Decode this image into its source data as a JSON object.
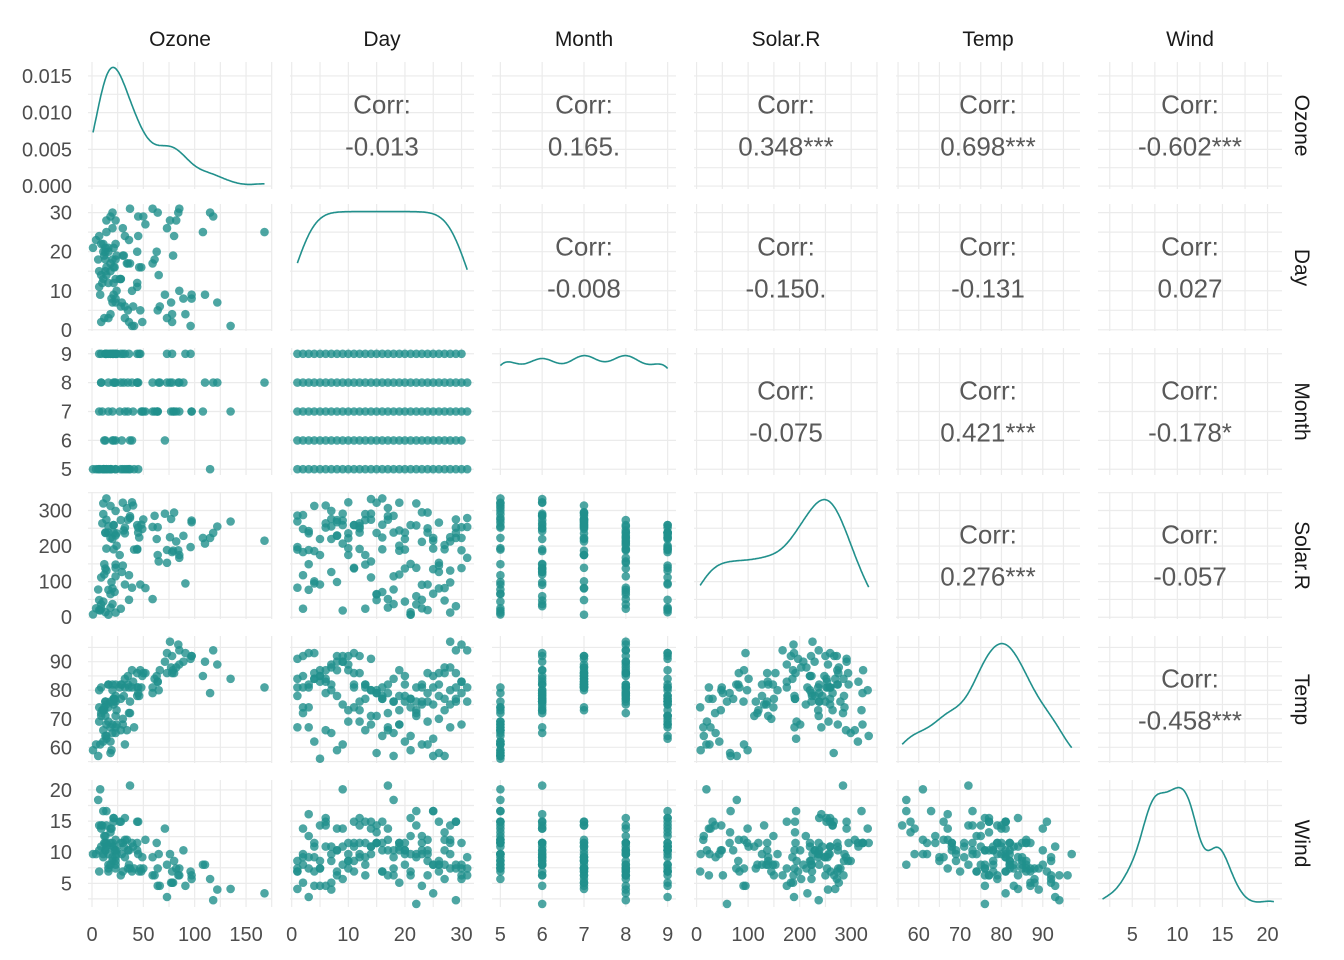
{
  "chart_data": {
    "type": "scatter-matrix",
    "title": "",
    "variables": [
      "Ozone",
      "Day",
      "Month",
      "Solar.R",
      "Temp",
      "Wind"
    ],
    "ranges": {
      "Ozone": [
        -3.9,
        175.3
      ],
      "Day": [
        -0.3,
        32.2
      ],
      "Month": [
        4.8,
        9.2
      ],
      "Solar.R": [
        -5,
        352
      ],
      "Temp": [
        54.5,
        99
      ],
      "Wind": [
        1.2,
        21.6
      ]
    },
    "ozone_density_range": [
      -0.0004,
      0.0169
    ],
    "ticks": {
      "Ozone": [
        "0",
        "50",
        "100",
        "150"
      ],
      "Day": [
        "0",
        "10",
        "20",
        "30"
      ],
      "Month": [
        "5",
        "6",
        "7",
        "8",
        "9"
      ],
      "Solar.R": [
        "0",
        "100",
        "200",
        "300"
      ],
      "Temp": [
        "60",
        "70",
        "80",
        "90"
      ],
      "Wind": [
        "5",
        "10",
        "15",
        "20"
      ]
    },
    "ozone_density_ticks": [
      "0.000",
      "0.005",
      "0.010",
      "0.015"
    ],
    "corr_label": "Corr:",
    "correlations": [
      {
        "row": "Ozone",
        "col": "Day",
        "text": "-0.013"
      },
      {
        "row": "Ozone",
        "col": "Month",
        "text": "0.165."
      },
      {
        "row": "Ozone",
        "col": "Solar.R",
        "text": "0.348***"
      },
      {
        "row": "Ozone",
        "col": "Temp",
        "text": "0.698***"
      },
      {
        "row": "Ozone",
        "col": "Wind",
        "text": "-0.602***"
      },
      {
        "row": "Day",
        "col": "Month",
        "text": "-0.008"
      },
      {
        "row": "Day",
        "col": "Solar.R",
        "text": "-0.150."
      },
      {
        "row": "Day",
        "col": "Temp",
        "text": "-0.131"
      },
      {
        "row": "Day",
        "col": "Wind",
        "text": "0.027"
      },
      {
        "row": "Month",
        "col": "Solar.R",
        "text": "-0.075"
      },
      {
        "row": "Month",
        "col": "Temp",
        "text": "0.421***"
      },
      {
        "row": "Month",
        "col": "Wind",
        "text": "-0.178*"
      },
      {
        "row": "Solar.R",
        "col": "Temp",
        "text": "0.276***"
      },
      {
        "row": "Solar.R",
        "col": "Wind",
        "text": "-0.057"
      },
      {
        "row": "Temp",
        "col": "Wind",
        "text": "-0.458***"
      }
    ],
    "colors": {
      "point": "#21908C",
      "line": "#21908C",
      "grid": "#EBEBEB",
      "corr": "#595959"
    },
    "month_counts": {
      "5": 31,
      "6": 30,
      "7": 31,
      "8": 31,
      "9": 30
    },
    "data": {
      "Ozone": [
        41,
        36,
        12,
        18,
        null,
        28,
        23,
        19,
        8,
        null,
        7,
        16,
        11,
        14,
        18,
        14,
        34,
        6,
        30,
        11,
        1,
        11,
        4,
        32,
        null,
        null,
        null,
        23,
        45,
        115,
        37,
        null,
        null,
        null,
        null,
        null,
        null,
        29,
        null,
        71,
        39,
        null,
        null,
        23,
        null,
        null,
        21,
        37,
        20,
        12,
        13,
        null,
        null,
        null,
        null,
        null,
        null,
        null,
        null,
        null,
        null,
        135,
        49,
        32,
        null,
        64,
        40,
        77,
        97,
        97,
        85,
        null,
        10,
        27,
        null,
        7,
        48,
        35,
        61,
        79,
        63,
        16,
        null,
        null,
        80,
        108,
        20,
        52,
        82,
        50,
        64,
        59,
        39,
        9,
        16,
        78,
        35,
        66,
        122,
        89,
        110,
        null,
        null,
        44,
        28,
        65,
        null,
        22,
        59,
        23,
        31,
        44,
        21,
        9,
        null,
        45,
        168,
        73,
        null,
        76,
        118,
        84,
        85,
        96,
        78,
        73,
        91,
        47,
        32,
        20,
        23,
        21,
        24,
        44,
        21,
        28,
        9,
        13,
        46,
        18,
        13,
        24,
        16,
        13,
        23,
        36,
        7,
        14,
        30,
        null,
        14,
        18,
        20
      ],
      "Solar.R": [
        190,
        118,
        149,
        313,
        null,
        null,
        299,
        99,
        19,
        194,
        null,
        256,
        290,
        274,
        65,
        334,
        307,
        78,
        322,
        44,
        8,
        320,
        25,
        92,
        66,
        266,
        null,
        13,
        252,
        223,
        279,
        286,
        287,
        242,
        186,
        220,
        264,
        127,
        273,
        291,
        323,
        259,
        250,
        148,
        332,
        322,
        191,
        284,
        37,
        120,
        137,
        150,
        59,
        91,
        250,
        135,
        127,
        47,
        98,
        31,
        138,
        269,
        248,
        236,
        101,
        175,
        314,
        276,
        267,
        272,
        175,
        139,
        264,
        175,
        291,
        48,
        260,
        274,
        285,
        187,
        220,
        7,
        258,
        295,
        294,
        223,
        81,
        82,
        213,
        275,
        253,
        254,
        83,
        24,
        77,
        null,
        null,
        null,
        255,
        229,
        207,
        222,
        137,
        192,
        273,
        157,
        64,
        71,
        51,
        115,
        244,
        190,
        259,
        36,
        212,
        238,
        215,
        153,
        203,
        225,
        237,
        188,
        167,
        197,
        183,
        189,
        95,
        92,
        252,
        220,
        230,
        259,
        236,
        259,
        238,
        24,
        112,
        237,
        224,
        27,
        238,
        201,
        238,
        14,
        139,
        49,
        20,
        193,
        145,
        191,
        131,
        223
      ],
      "Wind": [
        7.4,
        8.0,
        12.6,
        11.5,
        14.3,
        14.9,
        8.6,
        13.8,
        20.1,
        8.6,
        6.9,
        9.7,
        9.2,
        10.9,
        13.2,
        11.5,
        12.0,
        18.4,
        11.5,
        9.7,
        9.7,
        16.6,
        9.7,
        12.0,
        16.6,
        14.9,
        8.0,
        12.0,
        14.9,
        5.7,
        7.4,
        8.6,
        9.7,
        16.1,
        9.2,
        8.6,
        14.3,
        9.7,
        6.9,
        13.8,
        11.5,
        10.9,
        9.2,
        8.0,
        13.8,
        11.5,
        14.9,
        20.7,
        9.2,
        11.5,
        10.3,
        6.3,
        1.7,
        4.6,
        6.3,
        8.0,
        8.0,
        10.3,
        11.5,
        14.9,
        8.0,
        4.1,
        9.2,
        9.2,
        10.9,
        4.6,
        10.9,
        5.1,
        6.3,
        5.7,
        7.4,
        8.6,
        14.3,
        14.9,
        14.9,
        14.3,
        6.9,
        10.3,
        6.3,
        5.1,
        11.5,
        6.9,
        9.7,
        11.5,
        8.6,
        8.0,
        8.6,
        12.0,
        7.4,
        7.4,
        7.4,
        9.2,
        6.9,
        13.8,
        7.4,
        6.9,
        7.4,
        4.6,
        4.0,
        10.3,
        8.0,
        8.6,
        11.5,
        11.5,
        11.5,
        9.7,
        11.5,
        10.3,
        6.3,
        7.4,
        10.9,
        10.3,
        15.5,
        14.3,
        12.6,
        9.7,
        3.4,
        8.0,
        5.7,
        9.7,
        2.3,
        6.3,
        6.3,
        6.9,
        5.1,
        2.8,
        4.6,
        7.4,
        15.5,
        10.9,
        10.3,
        10.9,
        9.7,
        14.9,
        15.5,
        6.3,
        10.9,
        11.5,
        6.9,
        13.8,
        10.3,
        10.3,
        8.0,
        12.6,
        9.2,
        10.3,
        10.3,
        16.6,
        6.9,
        13.2,
        14.3,
        8.0,
        11.5
      ],
      "Temp": [
        67,
        72,
        74,
        62,
        56,
        66,
        65,
        59,
        61,
        69,
        74,
        69,
        66,
        68,
        58,
        64,
        66,
        57,
        68,
        62,
        59,
        73,
        61,
        61,
        57,
        58,
        57,
        67,
        81,
        79,
        76,
        78,
        74,
        67,
        84,
        85,
        79,
        82,
        87,
        90,
        87,
        93,
        92,
        82,
        80,
        79,
        77,
        72,
        65,
        73,
        76,
        77,
        76,
        76,
        76,
        75,
        78,
        73,
        80,
        77,
        83,
        84,
        85,
        81,
        84,
        83,
        83,
        88,
        92,
        92,
        89,
        82,
        73,
        81,
        91,
        80,
        81,
        82,
        84,
        87,
        85,
        74,
        81,
        82,
        86,
        85,
        82,
        86,
        88,
        86,
        83,
        81,
        81,
        81,
        82,
        86,
        85,
        87,
        89,
        90,
        90,
        92,
        86,
        86,
        82,
        80,
        79,
        77,
        79,
        76,
        78,
        78,
        77,
        72,
        75,
        79,
        81,
        86,
        88,
        97,
        94,
        96,
        94,
        91,
        92,
        93,
        93,
        87,
        84,
        80,
        78,
        75,
        73,
        81,
        76,
        77,
        71,
        71,
        78,
        67,
        76,
        68,
        82,
        64,
        71,
        81,
        69,
        63,
        70,
        77,
        75,
        76,
        68
      ]
    }
  }
}
